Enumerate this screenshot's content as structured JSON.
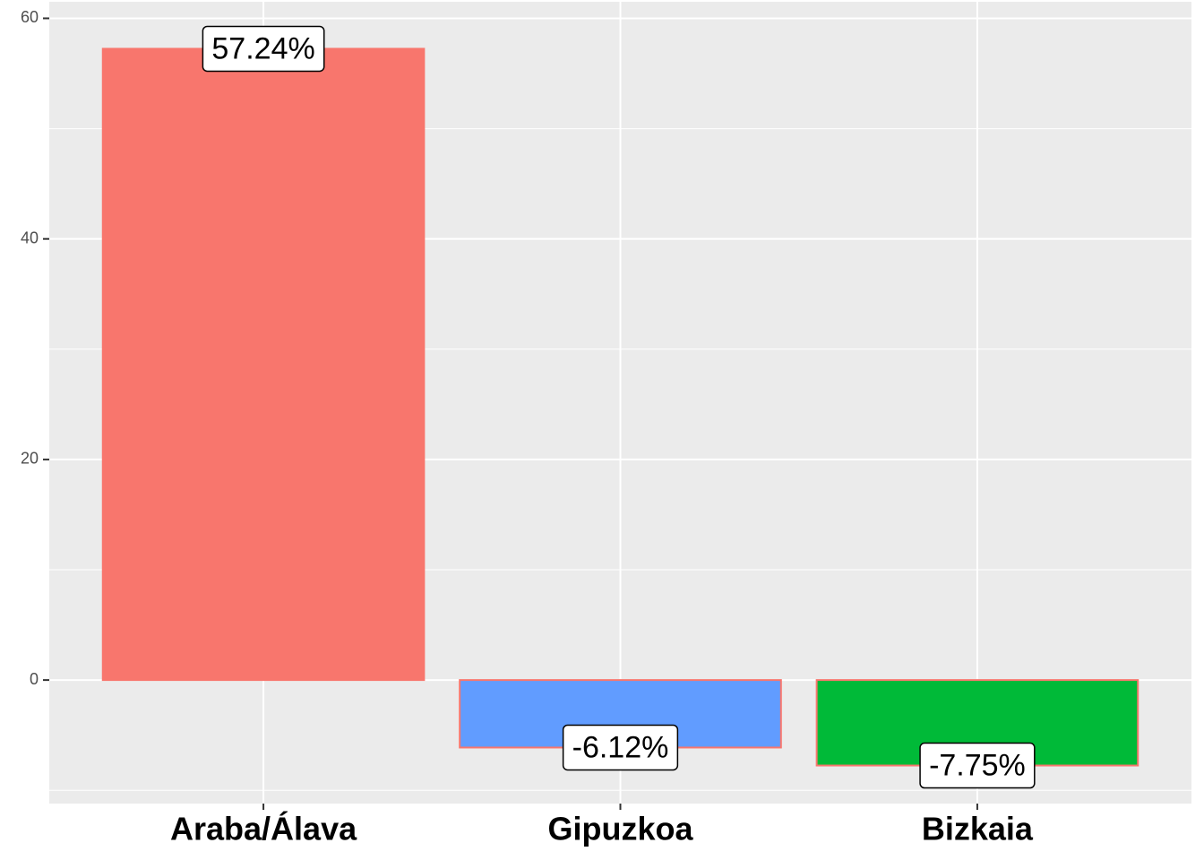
{
  "chart_data": {
    "type": "bar",
    "categories": [
      "Araba/Álava",
      "Gipuzkoa",
      "Bizkaia"
    ],
    "values": [
      57.24,
      -6.12,
      -7.75
    ],
    "value_labels": [
      "57.24%",
      "-6.12%",
      "-7.75%"
    ],
    "colors": [
      "#F8766D",
      "#619CFF",
      "#00BA38"
    ],
    "border_color": "#F8766D",
    "ylim": [
      -11.2,
      61.5
    ],
    "yticks": [
      0,
      20,
      40,
      60
    ],
    "grid": true
  }
}
